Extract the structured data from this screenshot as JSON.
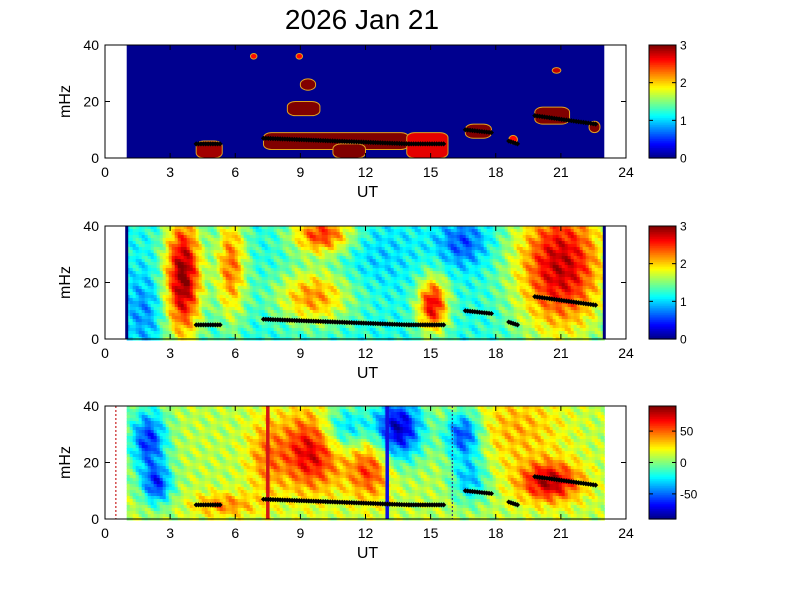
{
  "figure": {
    "title": "2026 Jan 21"
  },
  "chart_data": [
    {
      "type": "heatmap",
      "xlabel": "UT",
      "ylabel": "mHz",
      "xlim": [
        0,
        24
      ],
      "ylim": [
        0,
        40
      ],
      "xticks": [
        "0",
        "3",
        "6",
        "9",
        "12",
        "15",
        "18",
        "21",
        "24"
      ],
      "yticks": [
        "0",
        "20",
        "40"
      ],
      "data_extent_ut": [
        1,
        23
      ],
      "background": "#00008f",
      "clim": [
        0,
        3
      ],
      "colorbar_ticks": [
        "0",
        "1",
        "2",
        "3"
      ],
      "regions": [
        {
          "ut": [
            4.2,
            5.4
          ],
          "mhz": [
            0,
            6
          ],
          "level": 2.9
        },
        {
          "ut": [
            7.3,
            14.0
          ],
          "mhz": [
            3,
            9
          ],
          "level": 3.0
        },
        {
          "ut": [
            10.5,
            12.0
          ],
          "mhz": [
            0,
            5
          ],
          "level": 3.0
        },
        {
          "ut": [
            8.4,
            9.9
          ],
          "mhz": [
            15,
            20
          ],
          "level": 3.0
        },
        {
          "ut": [
            9.0,
            9.7
          ],
          "mhz": [
            24,
            28
          ],
          "level": 3.0
        },
        {
          "ut": [
            6.7,
            7.0
          ],
          "mhz": [
            35,
            37
          ],
          "level": 2.6
        },
        {
          "ut": [
            8.8,
            9.1
          ],
          "mhz": [
            35,
            37
          ],
          "level": 2.6
        },
        {
          "ut": [
            13.9,
            15.8
          ],
          "mhz": [
            0,
            9
          ],
          "level": 2.7
        },
        {
          "ut": [
            16.6,
            17.8
          ],
          "mhz": [
            7,
            12
          ],
          "level": 3.0
        },
        {
          "ut": [
            18.6,
            19.0
          ],
          "mhz": [
            5,
            8
          ],
          "level": 2.6
        },
        {
          "ut": [
            19.8,
            21.4
          ],
          "mhz": [
            12,
            18
          ],
          "level": 3.0
        },
        {
          "ut": [
            22.3,
            22.8
          ],
          "mhz": [
            9,
            13
          ],
          "level": 3.0
        },
        {
          "ut": [
            20.6,
            21.0
          ],
          "mhz": [
            30,
            32
          ],
          "level": 2.8
        }
      ],
      "ridge": [
        {
          "x": [
            4.2,
            5.3
          ],
          "y": [
            5,
            5
          ]
        },
        {
          "x": [
            7.3,
            14.0
          ],
          "y": [
            7,
            5
          ]
        },
        {
          "x": [
            14.0,
            15.6
          ],
          "y": [
            5,
            5
          ]
        },
        {
          "x": [
            16.6,
            17.8
          ],
          "y": [
            10,
            9
          ]
        },
        {
          "x": [
            18.6,
            19.0
          ],
          "y": [
            6,
            5
          ]
        },
        {
          "x": [
            19.8,
            22.6
          ],
          "y": [
            15,
            12
          ]
        }
      ]
    },
    {
      "type": "heatmap",
      "xlabel": "UT",
      "ylabel": "mHz",
      "xlim": [
        0,
        24
      ],
      "ylim": [
        0,
        40
      ],
      "xticks": [
        "0",
        "3",
        "6",
        "9",
        "12",
        "15",
        "18",
        "21",
        "24"
      ],
      "yticks": [
        "0",
        "20",
        "40"
      ],
      "data_extent_ut": [
        1,
        23
      ],
      "base_level": 1.2,
      "clim": [
        0,
        3
      ],
      "colorbar_ticks": [
        "0",
        "1",
        "2",
        "3"
      ],
      "features": [
        {
          "ut": 3.6,
          "mhz": 22,
          "level": 3.0,
          "sut": 0.6,
          "smhz": 16
        },
        {
          "ut": 5.8,
          "mhz": 26,
          "level": 2.3,
          "sut": 0.5,
          "smhz": 14
        },
        {
          "ut": 10.0,
          "mhz": 37,
          "level": 2.5,
          "sut": 1.0,
          "smhz": 5
        },
        {
          "ut": 9.6,
          "mhz": 15,
          "level": 2.2,
          "sut": 1.2,
          "smhz": 7
        },
        {
          "ut": 15.1,
          "mhz": 12,
          "level": 2.7,
          "sut": 0.5,
          "smhz": 7
        },
        {
          "ut": 21.0,
          "mhz": 26,
          "level": 2.8,
          "sut": 1.5,
          "smhz": 18
        },
        {
          "ut": 16.5,
          "mhz": 34,
          "level": 0.6,
          "sut": 0.8,
          "smhz": 6
        },
        {
          "ut": 1.8,
          "mhz": 10,
          "level": 0.8,
          "sut": 0.6,
          "smhz": 10
        },
        {
          "ut": 12.5,
          "mhz": 30,
          "level": 1.0,
          "sut": 1.2,
          "smhz": 8
        }
      ],
      "ridge": [
        {
          "x": [
            4.2,
            5.3
          ],
          "y": [
            5,
            5
          ]
        },
        {
          "x": [
            7.3,
            14.0
          ],
          "y": [
            7,
            5
          ]
        },
        {
          "x": [
            14.0,
            15.6
          ],
          "y": [
            5,
            5
          ]
        },
        {
          "x": [
            16.6,
            17.8
          ],
          "y": [
            10,
            9
          ]
        },
        {
          "x": [
            18.6,
            19.0
          ],
          "y": [
            6,
            5
          ]
        },
        {
          "x": [
            19.8,
            22.6
          ],
          "y": [
            15,
            12
          ]
        }
      ]
    },
    {
      "type": "heatmap",
      "xlabel": "UT",
      "ylabel": "mHz",
      "xlim": [
        0,
        24
      ],
      "ylim": [
        0,
        40
      ],
      "xticks": [
        "0",
        "3",
        "6",
        "9",
        "12",
        "15",
        "18",
        "21",
        "24"
      ],
      "yticks": [
        "0",
        "20",
        "40"
      ],
      "data_extent_ut": [
        1,
        23
      ],
      "base_level": 10,
      "clim": [
        -90,
        90
      ],
      "colorbar_ticks": [
        "-50",
        "0",
        "50"
      ],
      "features": [
        {
          "ut": 2.0,
          "mhz": 28,
          "level": -60,
          "sut": 0.6,
          "smhz": 8
        },
        {
          "ut": 2.4,
          "mhz": 12,
          "level": -55,
          "sut": 0.5,
          "smhz": 5
        },
        {
          "ut": 7.4,
          "mhz": 22,
          "level": 40,
          "sut": 0.6,
          "smhz": 10
        },
        {
          "ut": 9.5,
          "mhz": 24,
          "level": 75,
          "sut": 1.0,
          "smhz": 10
        },
        {
          "ut": 11.0,
          "mhz": 32,
          "level": -40,
          "sut": 0.8,
          "smhz": 6
        },
        {
          "ut": 12.2,
          "mhz": 18,
          "level": 60,
          "sut": 0.7,
          "smhz": 8
        },
        {
          "ut": 13.5,
          "mhz": 32,
          "level": -80,
          "sut": 0.8,
          "smhz": 8
        },
        {
          "ut": 16.5,
          "mhz": 30,
          "level": -60,
          "sut": 0.6,
          "smhz": 6
        },
        {
          "ut": 16.8,
          "mhz": 14,
          "level": -35,
          "sut": 0.6,
          "smhz": 6
        },
        {
          "ut": 20.5,
          "mhz": 13,
          "level": 80,
          "sut": 1.0,
          "smhz": 5
        },
        {
          "ut": 5.5,
          "mhz": 5,
          "level": 45,
          "sut": 1.0,
          "smhz": 3
        },
        {
          "ut": 19.0,
          "mhz": 32,
          "level": 35,
          "sut": 1.5,
          "smhz": 10
        }
      ],
      "vertical_lines": [
        {
          "ut": 7.5,
          "color": "#d41717"
        },
        {
          "ut": 13.0,
          "color": "#1010e0"
        }
      ],
      "dotted_lines": [
        {
          "ut": 0.5,
          "color": "#c82020"
        },
        {
          "ut": 16.0,
          "color": "#303080"
        }
      ],
      "ridge": [
        {
          "x": [
            4.2,
            5.3
          ],
          "y": [
            5,
            5
          ]
        },
        {
          "x": [
            7.3,
            14.0
          ],
          "y": [
            7,
            5
          ]
        },
        {
          "x": [
            14.0,
            15.6
          ],
          "y": [
            5,
            5
          ]
        },
        {
          "x": [
            16.6,
            17.8
          ],
          "y": [
            10,
            9
          ]
        },
        {
          "x": [
            18.6,
            19.0
          ],
          "y": [
            6,
            5
          ]
        },
        {
          "x": [
            19.8,
            22.6
          ],
          "y": [
            15,
            12
          ]
        }
      ]
    }
  ]
}
